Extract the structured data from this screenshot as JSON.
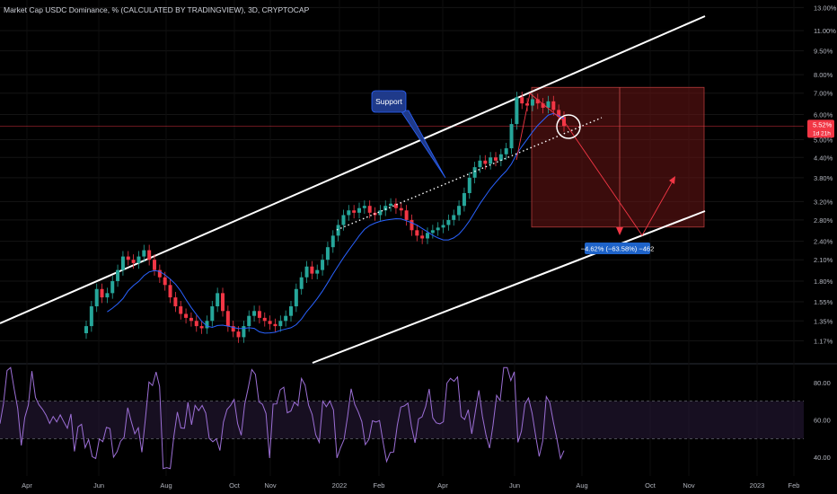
{
  "title": "Market Cap USDC Dominance, % (CALCULATED BY TRADINGVIEW), 3D, CRYPTOCAP",
  "chart_data": [
    {
      "type": "candlestick",
      "title": "Market Cap USDC Dominance, % (CALCULATED BY TRADINGVIEW), 3D, CRYPTOCAP",
      "y_scale": "log",
      "ylim": [
        1.05,
        13.2
      ],
      "y_ticks": [
        "13.00%",
        "11.00%",
        "9.50%",
        "8.00%",
        "7.00%",
        "6.00%",
        "5.00%",
        "4.40%",
        "3.80%",
        "3.20%",
        "2.80%",
        "2.40%",
        "2.10%",
        "1.80%",
        "1.55%",
        "1.35%",
        "1.17%"
      ],
      "x_ticks": [
        "Apr",
        "Jun",
        "Aug",
        "Oct",
        "Nov",
        "2022",
        "Feb",
        "Apr",
        "Jun",
        "Aug",
        "Oct",
        "Nov",
        "2023",
        "Feb"
      ],
      "current_price": {
        "value": 5.52,
        "label": "5.52%",
        "countdown": "1d 21h",
        "color": "#f23645"
      },
      "annotations": {
        "support_label": "Support",
        "measure_label": "−4.62% (−63.58%) −462"
      },
      "colors": {
        "up": "#26a69a",
        "down": "#f23645",
        "ma": "#2962ff",
        "channel": "#ffffff",
        "box": "#6b1515"
      },
      "close_series": [
        1.3,
        1.5,
        1.7,
        1.6,
        1.65,
        1.8,
        1.95,
        2.15,
        2.1,
        2.05,
        2.15,
        2.25,
        2.1,
        1.95,
        1.85,
        1.75,
        1.6,
        1.5,
        1.42,
        1.38,
        1.35,
        1.3,
        1.28,
        1.35,
        1.5,
        1.65,
        1.45,
        1.3,
        1.25,
        1.2,
        1.3,
        1.4,
        1.45,
        1.38,
        1.35,
        1.32,
        1.3,
        1.35,
        1.4,
        1.5,
        1.7,
        1.85,
        2.0,
        1.9,
        1.95,
        2.1,
        2.3,
        2.5,
        2.7,
        2.9,
        3.0,
        2.95,
        3.05,
        3.1,
        2.95,
        2.9,
        3.0,
        3.1,
        3.15,
        3.05,
        3.0,
        2.8,
        2.6,
        2.5,
        2.45,
        2.55,
        2.6,
        2.65,
        2.7,
        2.8,
        2.9,
        3.1,
        3.4,
        3.8,
        4.1,
        4.3,
        4.2,
        4.4,
        4.3,
        4.5,
        4.7,
        5.6,
        6.8,
        6.5,
        6.4,
        6.7,
        6.5,
        6.3,
        6.6,
        6.2,
        5.9,
        5.52
      ],
      "rsi": {
        "levels": [
          "80.00",
          "60.00",
          "40.00"
        ],
        "upper": 70,
        "lower": 50,
        "range": [
          30,
          90
        ],
        "color": "#9c6fd6"
      }
    }
  ]
}
